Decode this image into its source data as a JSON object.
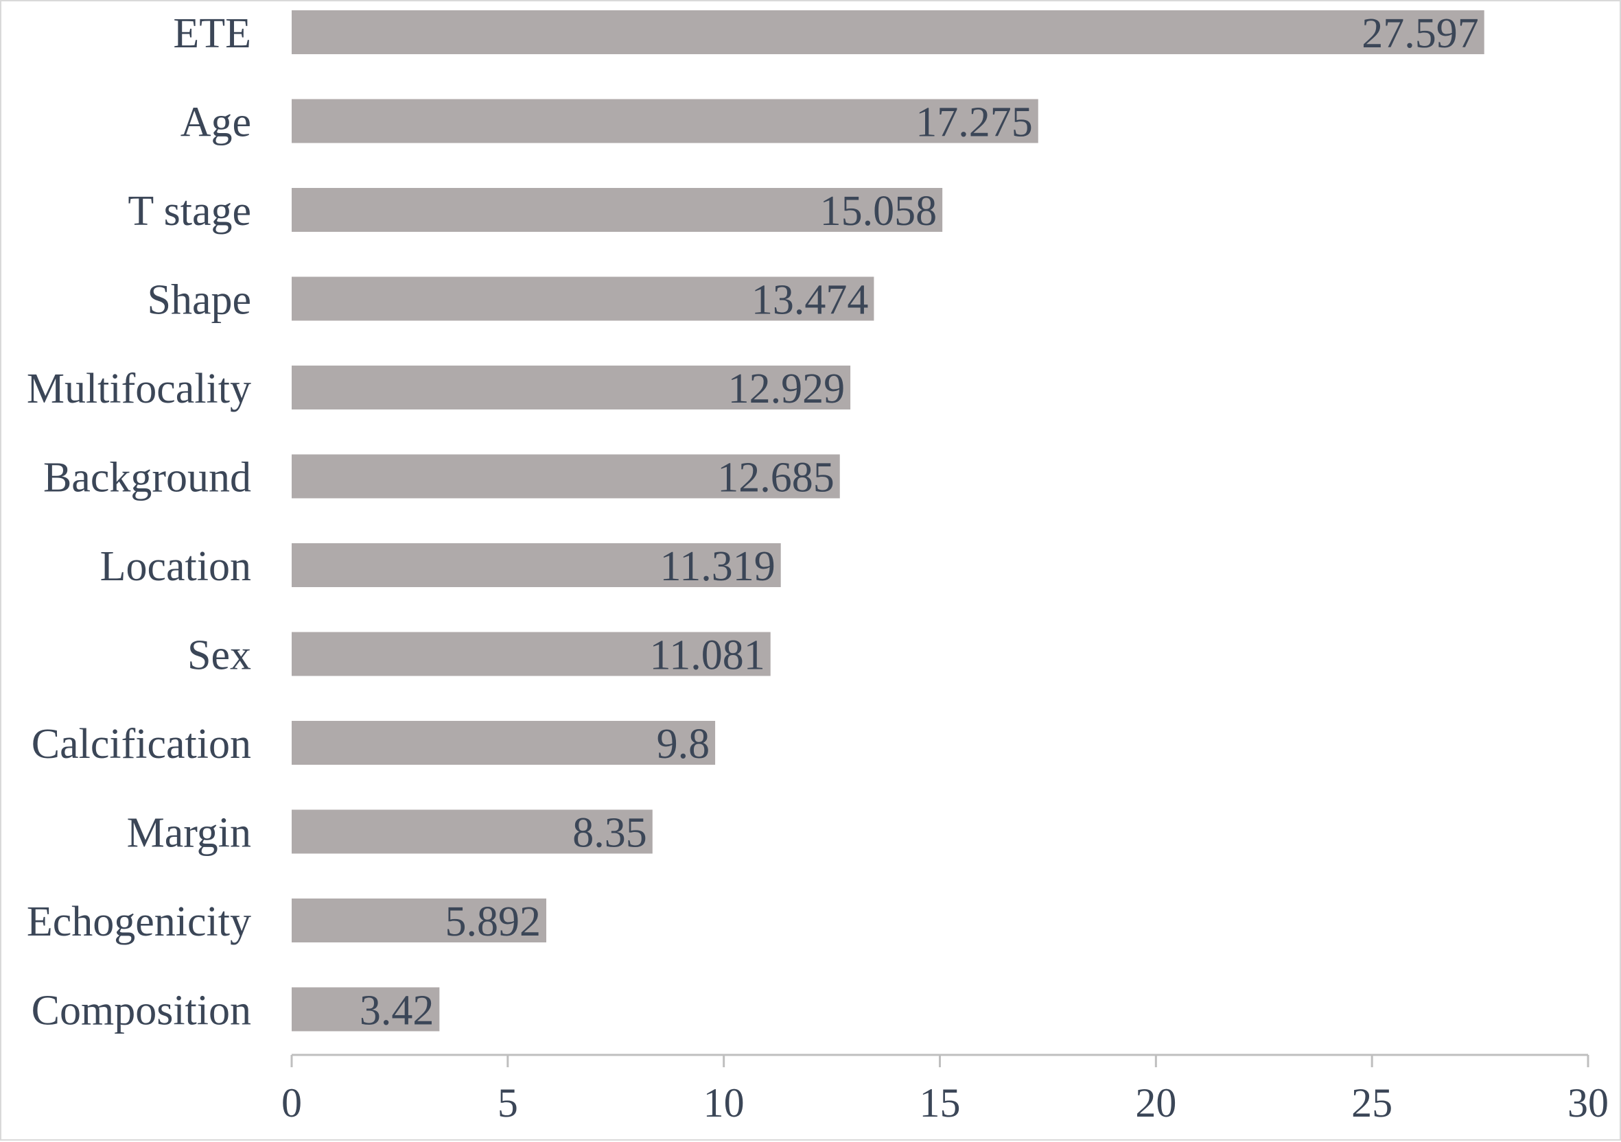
{
  "chart_data": {
    "type": "bar",
    "orientation": "horizontal",
    "categories": [
      "ETE",
      "Age",
      "T stage",
      "Shape",
      "Multifocality",
      "Background",
      "Location",
      "Sex",
      "Calcification",
      "Margin",
      "Echogenicity",
      "Composition"
    ],
    "values": [
      27.597,
      17.275,
      15.058,
      13.474,
      12.929,
      12.685,
      11.319,
      11.081,
      9.8,
      8.35,
      5.892,
      3.42
    ],
    "value_labels": [
      "27.597",
      "17.275",
      "15.058",
      "13.474",
      "12.929",
      "12.685",
      "11.319",
      "11.081",
      "9.8",
      "8.35",
      "5.892",
      "3.42"
    ],
    "xlim": [
      0,
      30
    ],
    "x_ticks": [
      0,
      5,
      10,
      15,
      20,
      25,
      30
    ],
    "x_tick_labels": [
      "0",
      "5",
      "10",
      "15",
      "20",
      "25",
      "30"
    ],
    "title": "",
    "xlabel": "",
    "ylabel": "",
    "grid": false,
    "legend": "none",
    "colors": {
      "bar": "#afaaaa",
      "text": "#3b4657",
      "axis": "#bfbfbf"
    }
  }
}
